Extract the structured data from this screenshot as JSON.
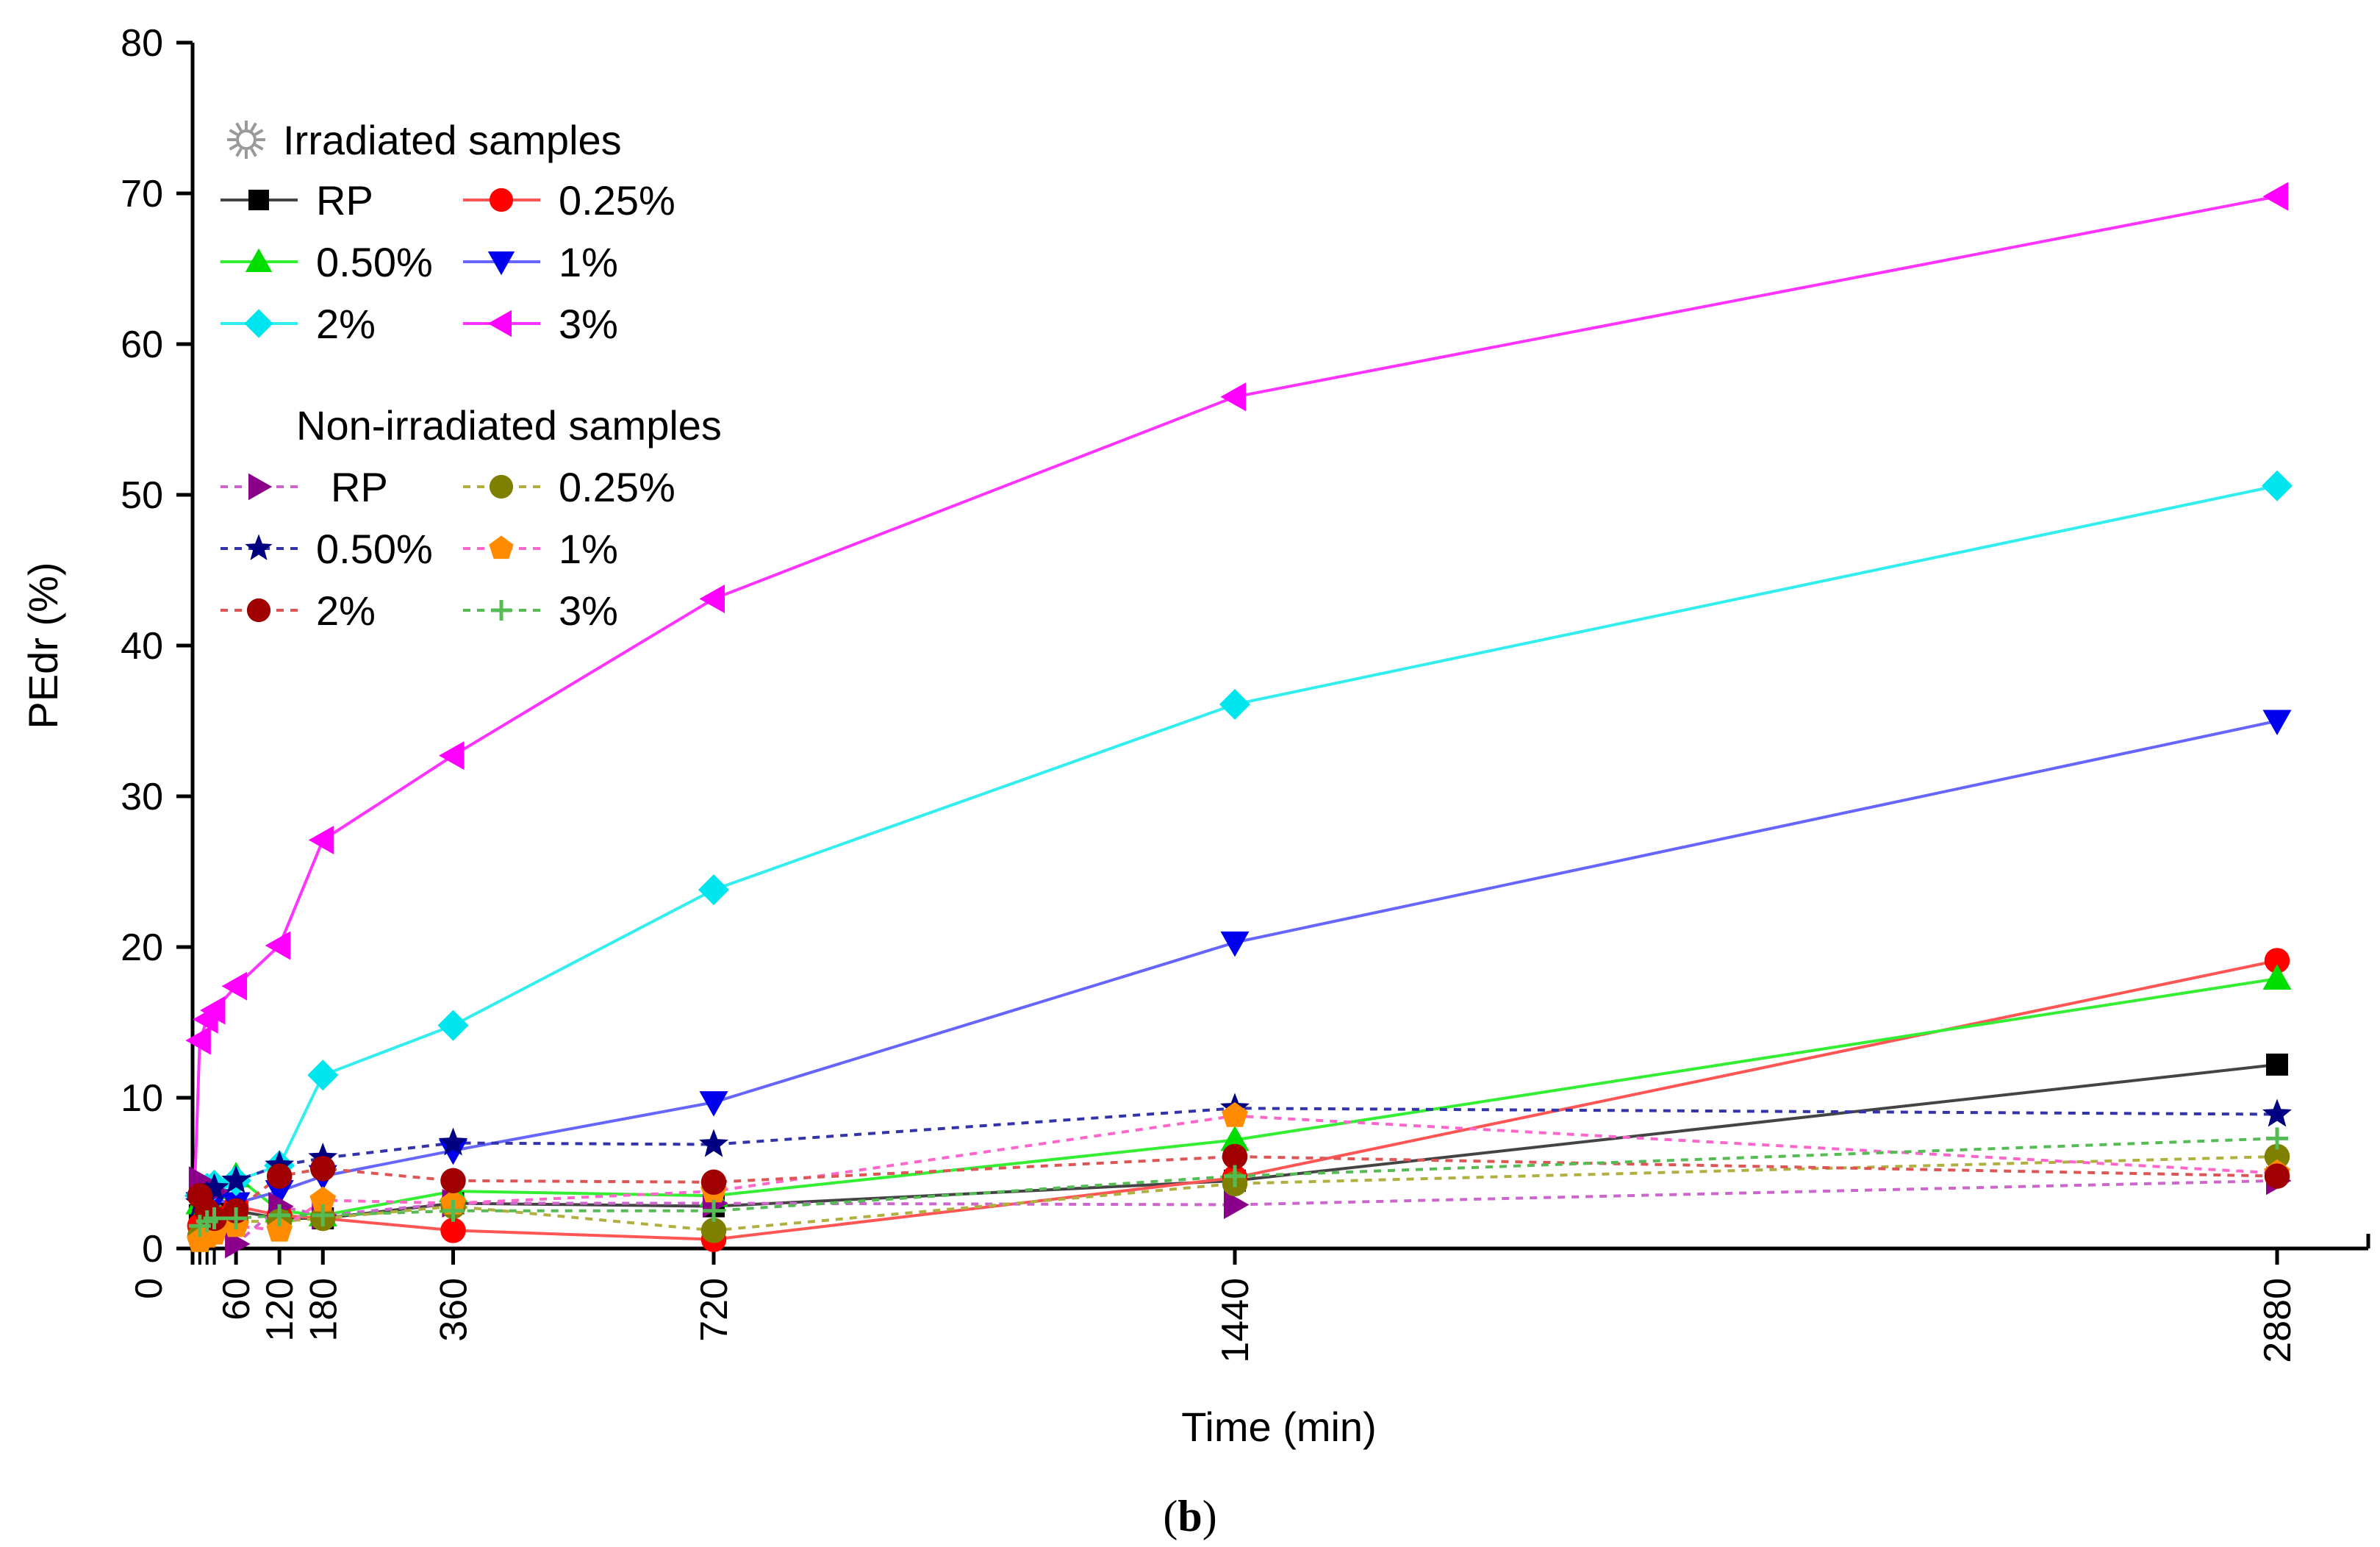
{
  "chart_data": {
    "type": "line",
    "title": "",
    "xlabel": "Time (min)",
    "ylabel": "PEdr (%)",
    "panel_label": "(b)",
    "panel_letter": "b",
    "xlim": [
      0,
      2880
    ],
    "ylim": [
      0,
      80
    ],
    "x_ticks": [
      0,
      60,
      120,
      180,
      360,
      720,
      1440,
      2880
    ],
    "y_ticks": [
      0,
      10,
      20,
      30,
      40,
      50,
      60,
      70,
      80
    ],
    "grid": false,
    "legend": {
      "placement": "top-left",
      "groups": [
        {
          "title": "Irradiated samples",
          "icon": "sun-icon"
        },
        {
          "title": "Non-irradiated samples",
          "icon": "moon-icon"
        }
      ]
    },
    "series": [
      {
        "name": "RP",
        "group": "Irradiated samples",
        "color": "#000000",
        "line": "#444444",
        "dash": "solid",
        "marker": "square",
        "x": [
          0,
          10,
          20,
          30,
          60,
          120,
          180,
          360,
          720,
          1440,
          2880
        ],
        "y": [
          0,
          2.2,
          2.6,
          2.3,
          2.5,
          2.0,
          2.0,
          3.0,
          2.8,
          4.5,
          12.2
        ]
      },
      {
        "name": "0.25%",
        "group": "Irradiated samples",
        "color": "#ff0000",
        "line": "#ff5555",
        "dash": "solid",
        "marker": "circle",
        "x": [
          0,
          10,
          20,
          30,
          60,
          120,
          180,
          360,
          720,
          1440,
          2880
        ],
        "y": [
          0,
          1.5,
          2.0,
          2.2,
          2.8,
          2.2,
          2.0,
          1.2,
          0.6,
          4.7,
          19.1
        ]
      },
      {
        "name": "0.50%",
        "group": "Irradiated samples",
        "color": "#00dd00",
        "line": "#33ee33",
        "dash": "solid",
        "marker": "triangle-up",
        "x": [
          0,
          10,
          20,
          30,
          60,
          120,
          180,
          360,
          720,
          1440,
          2880
        ],
        "y": [
          0,
          3.0,
          3.5,
          4.0,
          4.8,
          2.5,
          2.2,
          3.8,
          3.5,
          7.2,
          17.9
        ]
      },
      {
        "name": "1%",
        "group": "Irradiated samples",
        "color": "#0000ee",
        "line": "#6666ff",
        "dash": "solid",
        "marker": "triangle-down",
        "x": [
          0,
          10,
          20,
          30,
          60,
          120,
          180,
          360,
          720,
          1440,
          2880
        ],
        "y": [
          0,
          3.0,
          3.5,
          3.2,
          3.0,
          3.8,
          4.8,
          6.5,
          9.7,
          20.3,
          35.0
        ]
      },
      {
        "name": "2%",
        "group": "Irradiated samples",
        "color": "#00e5ee",
        "line": "#33eeee",
        "dash": "solid",
        "marker": "diamond",
        "x": [
          0,
          10,
          20,
          30,
          60,
          120,
          180,
          360,
          720,
          1440,
          2880
        ],
        "y": [
          0,
          3.5,
          4.0,
          4.2,
          4.5,
          5.5,
          11.5,
          14.8,
          23.8,
          36.1,
          50.6
        ]
      },
      {
        "name": "3%",
        "group": "Irradiated samples",
        "color": "#ff00ff",
        "line": "#ff33ff",
        "dash": "solid",
        "marker": "triangle-left",
        "x": [
          0,
          10,
          20,
          30,
          60,
          120,
          180,
          360,
          720,
          1440,
          2880
        ],
        "y": [
          0,
          13.8,
          15.2,
          15.8,
          17.4,
          20.1,
          27.1,
          32.7,
          43.1,
          56.5,
          69.8
        ]
      },
      {
        "name": "RP",
        "group": "Non-irradiated samples",
        "color": "#8b008b",
        "line": "#cc66cc",
        "dash": "dotted",
        "marker": "triangle-right",
        "x": [
          0,
          10,
          20,
          30,
          60,
          120,
          180,
          360,
          720,
          1440,
          2880
        ],
        "y": [
          0,
          4.5,
          4.2,
          3.8,
          0.3,
          2.8,
          2.2,
          3.0,
          3.0,
          2.9,
          4.5
        ]
      },
      {
        "name": "0.25%",
        "group": "Non-irradiated samples",
        "color": "#808000",
        "line": "#b0b040",
        "dash": "dotted",
        "marker": "circle",
        "x": [
          0,
          10,
          20,
          30,
          60,
          120,
          180,
          360,
          720,
          1440,
          2880
        ],
        "y": [
          0,
          0.8,
          1.0,
          1.5,
          1.8,
          1.8,
          2.0,
          2.8,
          1.2,
          4.3,
          6.1
        ]
      },
      {
        "name": "0.50%",
        "group": "Non-irradiated samples",
        "color": "#000080",
        "line": "#3333aa",
        "dash": "dotted",
        "marker": "star",
        "x": [
          0,
          10,
          20,
          30,
          60,
          120,
          180,
          360,
          720,
          1440,
          2880
        ],
        "y": [
          0,
          3.0,
          3.5,
          4.0,
          4.5,
          5.5,
          6.0,
          7.0,
          6.9,
          9.3,
          8.9
        ]
      },
      {
        "name": "1%",
        "group": "Non-irradiated samples",
        "color": "#ff8c00",
        "line": "#ff66cc",
        "dash": "dotted",
        "marker": "pentagon",
        "x": [
          0,
          10,
          20,
          30,
          60,
          120,
          180,
          360,
          720,
          1440,
          2880
        ],
        "y": [
          0,
          0.5,
          0.8,
          1.0,
          1.5,
          1.2,
          3.2,
          3.0,
          3.8,
          8.8,
          5.0
        ]
      },
      {
        "name": "2%",
        "group": "Non-irradiated samples",
        "color": "#a00000",
        "line": "#dd5555",
        "dash": "dotted",
        "marker": "circle",
        "x": [
          0,
          10,
          20,
          30,
          60,
          120,
          180,
          360,
          720,
          1440,
          2880
        ],
        "y": [
          0,
          3.5,
          2.5,
          2.0,
          2.5,
          4.8,
          5.3,
          4.5,
          4.4,
          6.1,
          4.8
        ]
      },
      {
        "name": "3%",
        "group": "Non-irradiated samples",
        "color": "#55bb55",
        "line": "#55bb55",
        "dash": "dotted",
        "marker": "plus",
        "x": [
          0,
          10,
          20,
          30,
          60,
          120,
          180,
          360,
          720,
          1440,
          2880
        ],
        "y": [
          0,
          1.5,
          1.8,
          2.0,
          2.0,
          2.2,
          2.2,
          2.5,
          2.5,
          4.8,
          7.3
        ]
      }
    ]
  }
}
